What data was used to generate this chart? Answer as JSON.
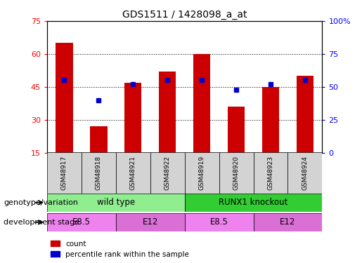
{
  "title": "GDS1511 / 1428098_a_at",
  "samples": [
    "GSM48917",
    "GSM48918",
    "GSM48921",
    "GSM48922",
    "GSM48919",
    "GSM48920",
    "GSM48923",
    "GSM48924"
  ],
  "counts": [
    65,
    27,
    47,
    52,
    60,
    36,
    45,
    50
  ],
  "percentile_ranks": [
    55,
    40,
    52,
    55,
    55,
    48,
    52,
    55
  ],
  "ylim_left": [
    15,
    75
  ],
  "ylim_right": [
    0,
    100
  ],
  "yticks_left": [
    15,
    30,
    45,
    60,
    75
  ],
  "yticks_right": [
    0,
    25,
    50,
    75,
    100
  ],
  "yticklabels_right": [
    "0",
    "25",
    "50",
    "75",
    "100%"
  ],
  "bar_color": "#cc0000",
  "dot_color": "#0000cc",
  "bar_width": 0.5,
  "groups": [
    {
      "label": "wild type",
      "start": 0,
      "end": 4,
      "color": "#90ee90"
    },
    {
      "label": "RUNX1 knockout",
      "start": 4,
      "end": 8,
      "color": "#32cd32"
    }
  ],
  "stages": [
    {
      "label": "E8.5",
      "start": 0,
      "end": 2,
      "color": "#ee82ee"
    },
    {
      "label": "E12",
      "start": 2,
      "end": 4,
      "color": "#da70d6"
    },
    {
      "label": "E8.5",
      "start": 4,
      "end": 6,
      "color": "#ee82ee"
    },
    {
      "label": "E12",
      "start": 6,
      "end": 8,
      "color": "#da70d6"
    }
  ],
  "genotype_label": "genotype/variation",
  "stage_label": "development stage",
  "legend_count_label": "count",
  "legend_pct_label": "percentile rank within the sample",
  "background_color": "#ffffff",
  "plot_bg_color": "#ffffff",
  "sample_area_color": "#d3d3d3"
}
